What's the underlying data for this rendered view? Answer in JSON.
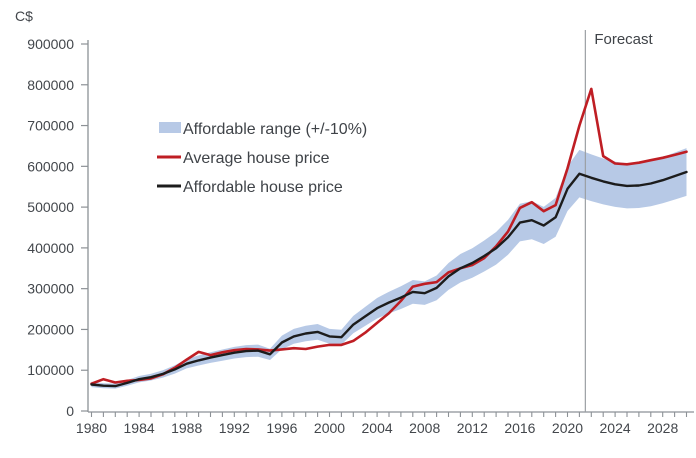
{
  "chart_data": {
    "type": "line",
    "title": "",
    "ylabel": "C$",
    "xlabel": "",
    "forecast_label": "Forecast",
    "forecast_start": 2021.5,
    "grid": false,
    "legend_position": "upper-left-inside",
    "ylim": [
      0,
      900000
    ],
    "xlim": [
      1980,
      2030
    ],
    "yticks": [
      0,
      100000,
      200000,
      300000,
      400000,
      500000,
      600000,
      700000,
      800000,
      900000
    ],
    "xticks": [
      1980,
      1984,
      1988,
      1992,
      1996,
      2000,
      2004,
      2008,
      2012,
      2016,
      2020,
      2024,
      2028
    ],
    "minor_xtick_step": 1,
    "x": [
      1980,
      1981,
      1982,
      1983,
      1984,
      1985,
      1986,
      1987,
      1988,
      1989,
      1990,
      1991,
      1992,
      1993,
      1994,
      1995,
      1996,
      1997,
      1998,
      1999,
      2000,
      2001,
      2002,
      2003,
      2004,
      2005,
      2006,
      2007,
      2008,
      2009,
      2010,
      2011,
      2012,
      2013,
      2014,
      2015,
      2016,
      2017,
      2018,
      2019,
      2020,
      2021,
      2022,
      2023,
      2024,
      2025,
      2026,
      2027,
      2028,
      2029,
      2030
    ],
    "series": [
      {
        "name": "Average house price",
        "type": "line",
        "color": "#bf1e24",
        "values": [
          67000,
          78000,
          70000,
          74000,
          76000,
          80000,
          90000,
          106000,
          126000,
          145000,
          137000,
          144000,
          149000,
          152000,
          151000,
          148000,
          151000,
          154000,
          152000,
          158000,
          162000,
          162000,
          172000,
          192000,
          216000,
          240000,
          270000,
          305000,
          312000,
          316000,
          340000,
          350000,
          358000,
          375000,
          404000,
          440000,
          498000,
          512000,
          490000,
          505000,
          595000,
          700000,
          790000,
          625000,
          607000,
          605000,
          609000,
          615000,
          621000,
          628000,
          636000
        ]
      },
      {
        "name": "Affordable house price",
        "type": "line",
        "color": "#1c1c1c",
        "values": [
          65000,
          62000,
          61000,
          69000,
          78000,
          83000,
          91000,
          102000,
          116000,
          124000,
          131000,
          137000,
          143000,
          147000,
          148000,
          139000,
          168000,
          183000,
          190000,
          194000,
          183000,
          181000,
          212000,
          232000,
          252000,
          266000,
          278000,
          292000,
          289000,
          302000,
          330000,
          350000,
          363000,
          380000,
          399000,
          426000,
          462000,
          468000,
          455000,
          475000,
          545000,
          582000,
          572000,
          563000,
          556000,
          552000,
          553000,
          558000,
          566000,
          576000,
          586000
        ]
      },
      {
        "name": "Affordable range (+/-10%)",
        "type": "band",
        "around": "Affordable house price",
        "pct": 0.1,
        "color": "#b7c9e6"
      }
    ],
    "axis_color": "#8c9196",
    "forecast_line_color": "#9b9fa3"
  }
}
